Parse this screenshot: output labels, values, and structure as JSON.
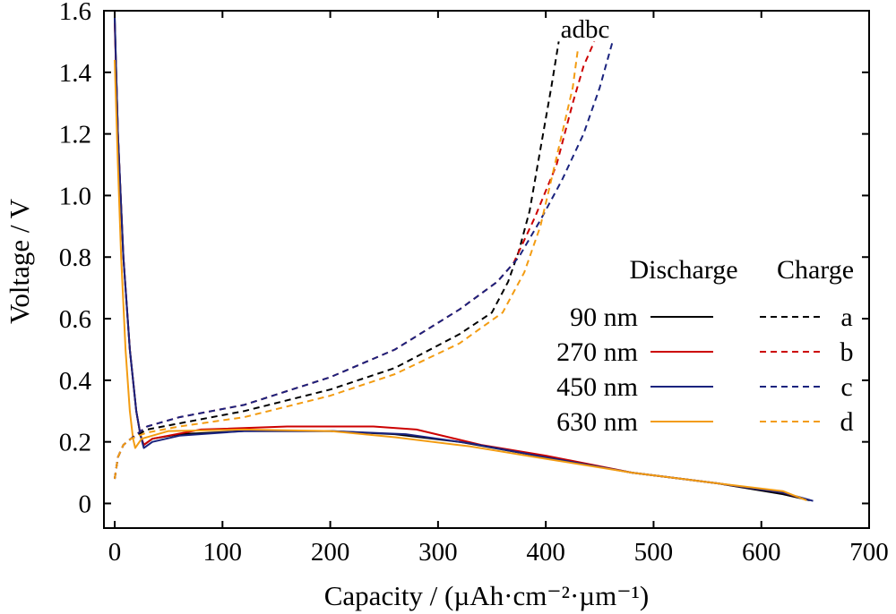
{
  "chart_data": {
    "type": "line",
    "xlabel": "Capacity / (µAh·cm⁻²·µm⁻¹)",
    "ylabel": "Voltage / V",
    "xlim": [
      -10,
      700
    ],
    "ylim": [
      -0.08,
      1.6
    ],
    "xticks": [
      0,
      100,
      200,
      300,
      400,
      500,
      600,
      700
    ],
    "yticks": [
      0,
      0.2,
      0.4,
      0.6,
      0.8,
      1.0,
      1.2,
      1.4,
      1.6
    ],
    "xtick_labels": [
      "0",
      "100",
      "200",
      "300",
      "400",
      "500",
      "600",
      "700"
    ],
    "ytick_labels": [
      "0",
      "0.2",
      "0.4",
      "0.6",
      "0.8",
      "1.0",
      "1.2",
      "1.4",
      "1.6"
    ],
    "grid": false,
    "legend": {
      "placement": "right",
      "discharge_header": "Discharge",
      "charge_header": "Charge",
      "entries": [
        {
          "label": "90 nm",
          "charge_label": "a"
        },
        {
          "label": "270 nm",
          "charge_label": "b"
        },
        {
          "label": "450 nm",
          "charge_label": "c"
        },
        {
          "label": "630 nm",
          "charge_label": "d"
        }
      ]
    },
    "top_labels": "adbc",
    "series": [
      {
        "name": "90 nm",
        "kind": "discharge",
        "style": "solid",
        "color": "#000000",
        "points": [
          [
            0,
            1.58
          ],
          [
            3,
            1.2
          ],
          [
            8,
            0.8
          ],
          [
            14,
            0.5
          ],
          [
            20,
            0.3
          ],
          [
            24,
            0.22
          ],
          [
            27,
            0.19
          ],
          [
            35,
            0.21
          ],
          [
            60,
            0.225
          ],
          [
            120,
            0.235
          ],
          [
            200,
            0.235
          ],
          [
            260,
            0.225
          ],
          [
            320,
            0.2
          ],
          [
            400,
            0.15
          ],
          [
            480,
            0.1
          ],
          [
            560,
            0.065
          ],
          [
            620,
            0.03
          ],
          [
            645,
            0.01
          ]
        ]
      },
      {
        "name": "270 nm",
        "kind": "discharge",
        "style": "solid",
        "color": "#cc0000",
        "points": [
          [
            0,
            1.56
          ],
          [
            3,
            1.2
          ],
          [
            8,
            0.8
          ],
          [
            14,
            0.5
          ],
          [
            20,
            0.3
          ],
          [
            24,
            0.22
          ],
          [
            27,
            0.19
          ],
          [
            35,
            0.21
          ],
          [
            80,
            0.24
          ],
          [
            160,
            0.25
          ],
          [
            240,
            0.25
          ],
          [
            280,
            0.24
          ],
          [
            310,
            0.215
          ],
          [
            340,
            0.19
          ],
          [
            400,
            0.155
          ],
          [
            480,
            0.1
          ],
          [
            560,
            0.065
          ],
          [
            620,
            0.035
          ],
          [
            640,
            0.015
          ]
        ]
      },
      {
        "name": "450 nm",
        "kind": "discharge",
        "style": "solid",
        "color": "#1a237e",
        "points": [
          [
            0,
            1.58
          ],
          [
            3,
            1.2
          ],
          [
            8,
            0.8
          ],
          [
            14,
            0.5
          ],
          [
            20,
            0.3
          ],
          [
            24,
            0.22
          ],
          [
            27,
            0.18
          ],
          [
            35,
            0.2
          ],
          [
            60,
            0.22
          ],
          [
            120,
            0.235
          ],
          [
            200,
            0.235
          ],
          [
            270,
            0.225
          ],
          [
            330,
            0.195
          ],
          [
            400,
            0.15
          ],
          [
            480,
            0.1
          ],
          [
            560,
            0.065
          ],
          [
            620,
            0.035
          ],
          [
            648,
            0.008
          ]
        ]
      },
      {
        "name": "630 nm",
        "kind": "discharge",
        "style": "solid",
        "color": "#f39c12",
        "points": [
          [
            0,
            1.44
          ],
          [
            3,
            1.1
          ],
          [
            6,
            0.8
          ],
          [
            10,
            0.5
          ],
          [
            14,
            0.3
          ],
          [
            17,
            0.21
          ],
          [
            19,
            0.18
          ],
          [
            25,
            0.21
          ],
          [
            50,
            0.235
          ],
          [
            120,
            0.24
          ],
          [
            200,
            0.235
          ],
          [
            260,
            0.215
          ],
          [
            330,
            0.185
          ],
          [
            400,
            0.145
          ],
          [
            480,
            0.1
          ],
          [
            560,
            0.065
          ],
          [
            620,
            0.04
          ],
          [
            642,
            0.01
          ]
        ]
      },
      {
        "name": "a",
        "kind": "charge",
        "style": "dashed",
        "color": "#000000",
        "points": [
          [
            0,
            0.08
          ],
          [
            3,
            0.15
          ],
          [
            8,
            0.19
          ],
          [
            15,
            0.21
          ],
          [
            30,
            0.24
          ],
          [
            60,
            0.26
          ],
          [
            120,
            0.3
          ],
          [
            200,
            0.37
          ],
          [
            260,
            0.44
          ],
          [
            320,
            0.55
          ],
          [
            350,
            0.62
          ],
          [
            365,
            0.72
          ],
          [
            375,
            0.82
          ],
          [
            385,
            0.95
          ],
          [
            395,
            1.15
          ],
          [
            405,
            1.35
          ],
          [
            412,
            1.5
          ]
        ]
      },
      {
        "name": "b",
        "kind": "charge",
        "style": "dashed",
        "color": "#cc0000",
        "points": [
          [
            0,
            0.08
          ],
          [
            3,
            0.15
          ],
          [
            8,
            0.19
          ],
          [
            15,
            0.21
          ],
          [
            30,
            0.25
          ],
          [
            60,
            0.28
          ],
          [
            120,
            0.32
          ],
          [
            200,
            0.41
          ],
          [
            260,
            0.5
          ],
          [
            320,
            0.63
          ],
          [
            355,
            0.72
          ],
          [
            370,
            0.78
          ],
          [
            390,
            0.93
          ],
          [
            410,
            1.1
          ],
          [
            425,
            1.3
          ],
          [
            435,
            1.42
          ],
          [
            445,
            1.5
          ]
        ]
      },
      {
        "name": "c",
        "kind": "charge",
        "style": "dashed",
        "color": "#1a237e",
        "points": [
          [
            0,
            0.08
          ],
          [
            3,
            0.15
          ],
          [
            8,
            0.19
          ],
          [
            15,
            0.21
          ],
          [
            30,
            0.25
          ],
          [
            60,
            0.28
          ],
          [
            120,
            0.32
          ],
          [
            200,
            0.41
          ],
          [
            260,
            0.5
          ],
          [
            320,
            0.63
          ],
          [
            355,
            0.72
          ],
          [
            375,
            0.8
          ],
          [
            395,
            0.92
          ],
          [
            415,
            1.05
          ],
          [
            435,
            1.2
          ],
          [
            450,
            1.35
          ],
          [
            462,
            1.5
          ]
        ]
      },
      {
        "name": "d",
        "kind": "charge",
        "style": "dashed",
        "color": "#f39c12",
        "points": [
          [
            0,
            0.08
          ],
          [
            3,
            0.15
          ],
          [
            8,
            0.19
          ],
          [
            15,
            0.21
          ],
          [
            30,
            0.23
          ],
          [
            60,
            0.25
          ],
          [
            120,
            0.28
          ],
          [
            200,
            0.35
          ],
          [
            260,
            0.42
          ],
          [
            320,
            0.52
          ],
          [
            360,
            0.62
          ],
          [
            380,
            0.75
          ],
          [
            395,
            0.9
          ],
          [
            405,
            1.05
          ],
          [
            415,
            1.2
          ],
          [
            425,
            1.35
          ],
          [
            430,
            1.48
          ]
        ]
      }
    ]
  }
}
